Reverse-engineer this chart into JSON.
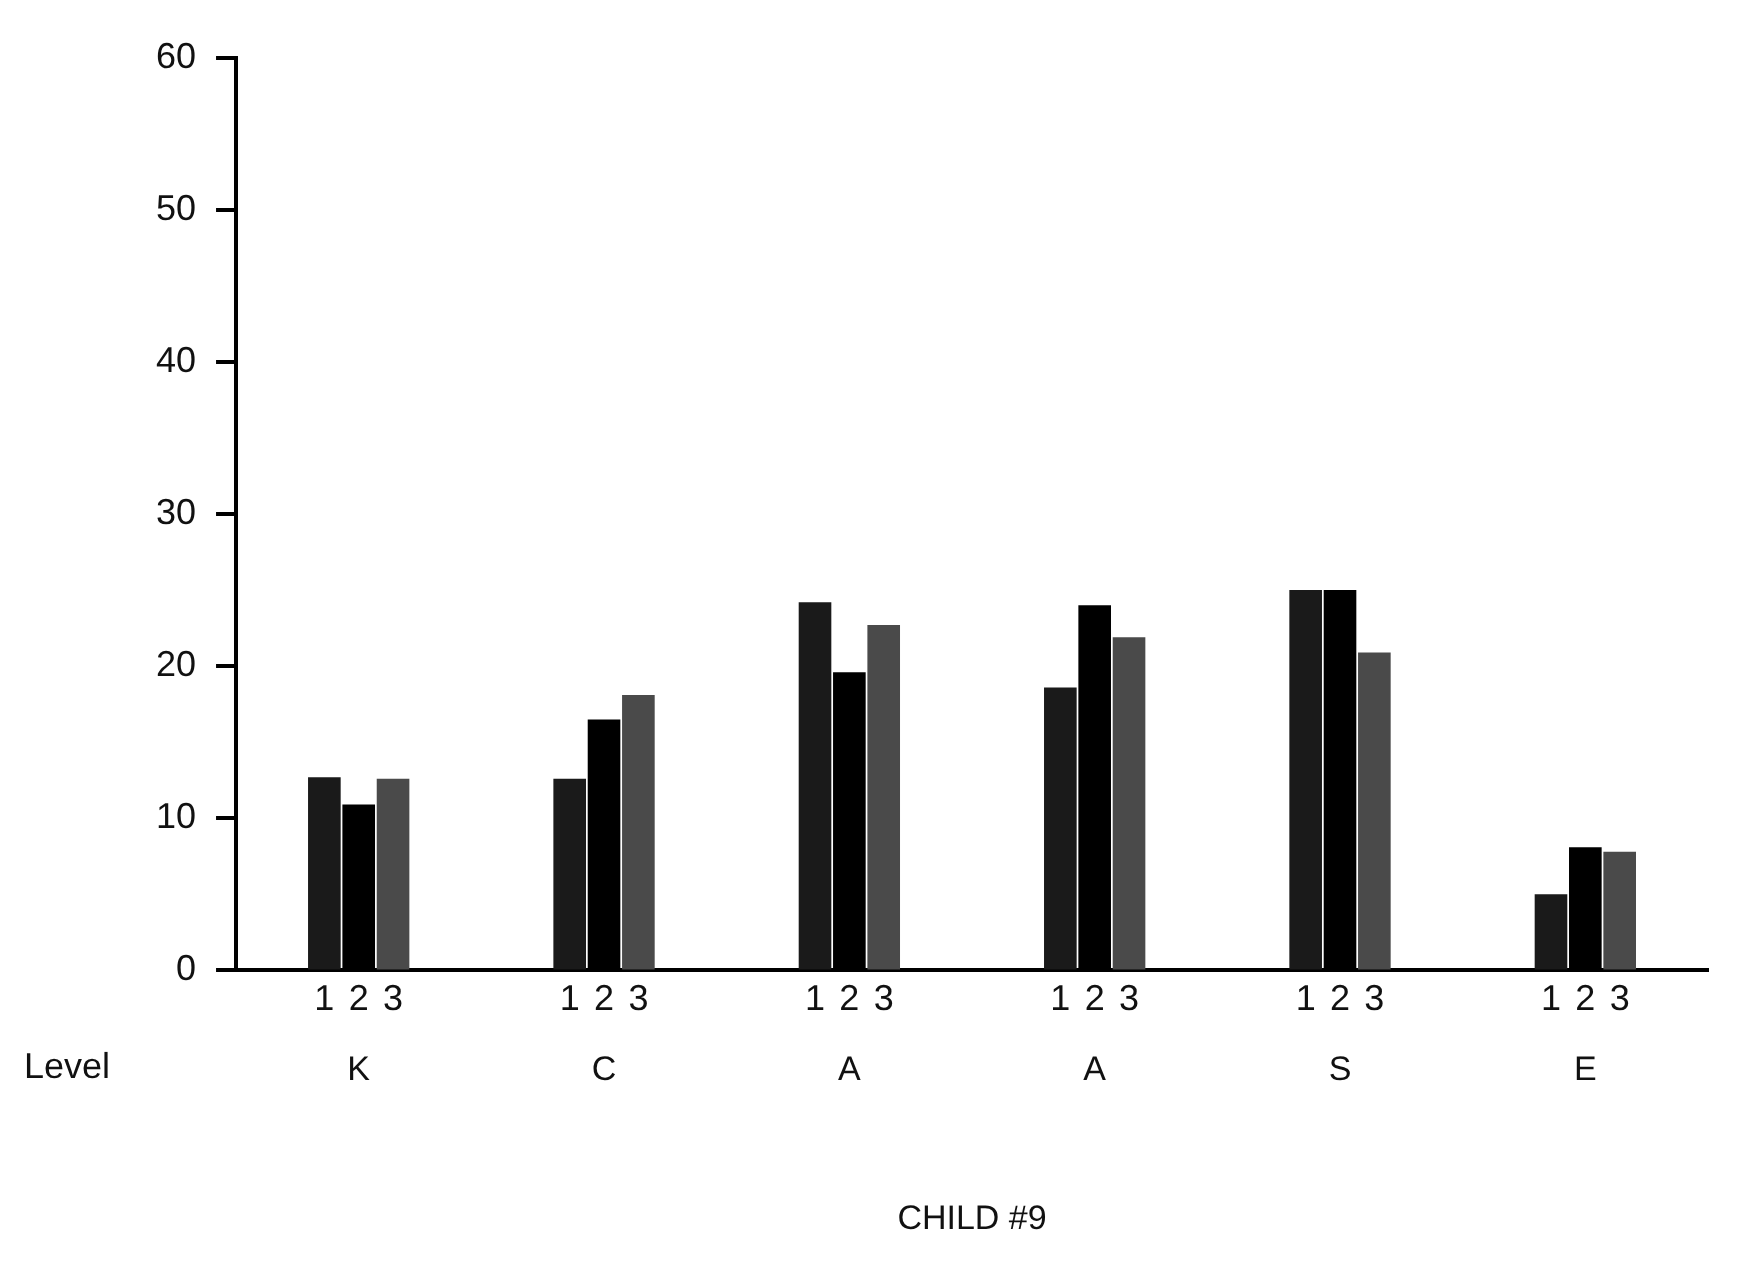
{
  "chart_data": {
    "type": "bar",
    "xlabel": "CHILD #9",
    "categories": [
      "K",
      "C",
      "A",
      "A",
      "S",
      "E"
    ],
    "series": [
      {
        "name": "1",
        "color": "#1a1a1a",
        "values": [
          12.7,
          12.6,
          24.2,
          18.6,
          25,
          5
        ]
      },
      {
        "name": "2",
        "color": "#000000",
        "values": [
          10.9,
          16.5,
          19.6,
          24,
          25,
          8.1
        ]
      },
      {
        "name": "3",
        "color": "#4a4a4a",
        "values": [
          12.6,
          18.1,
          22.7,
          21.9,
          20.9,
          7.8
        ]
      }
    ],
    "ylim": [
      0,
      60
    ],
    "yticks": [
      0,
      10,
      20,
      30,
      40,
      50,
      60
    ],
    "grid": false,
    "legend": false,
    "annotations": [
      "Level"
    ]
  }
}
